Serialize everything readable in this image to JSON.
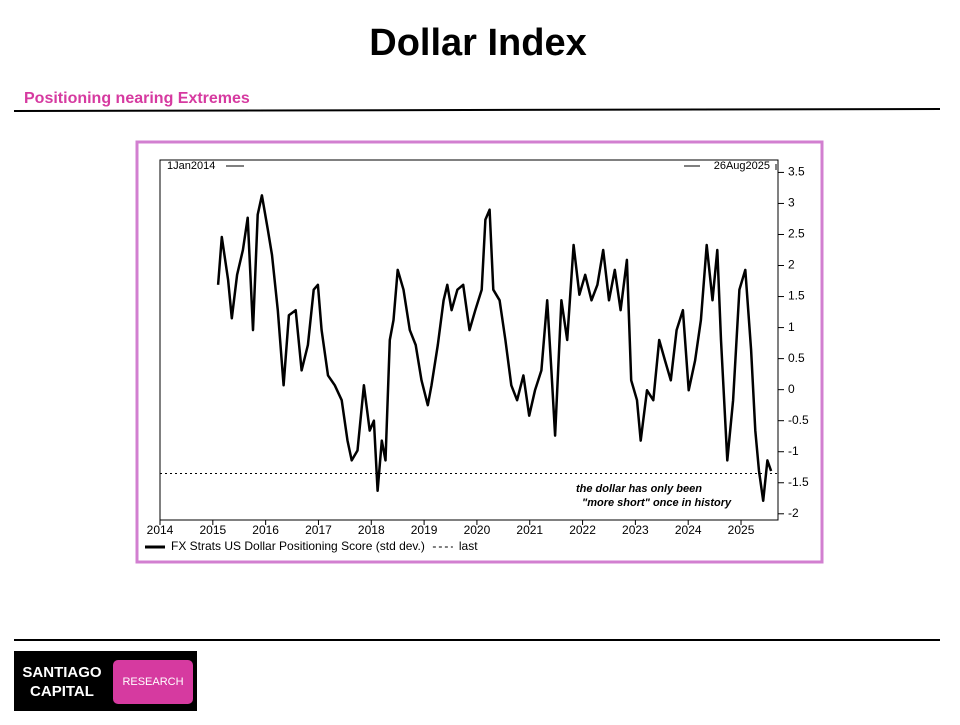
{
  "header": {
    "title": "Dollar Index",
    "subtitle": "Positioning nearing Extremes"
  },
  "logo": {
    "line1": "SANTIAGO",
    "line2": "CAPITAL",
    "tag": "RESEARCH"
  },
  "chart_data": {
    "type": "line",
    "start_label": "1Jan2014",
    "end_label": "26Aug2025",
    "annotation": [
      "the dollar has only been",
      "\"more short\" once in history"
    ],
    "x": [
      2015.1,
      2015.17,
      2015.29,
      2015.36,
      2015.46,
      2015.57,
      2015.66,
      2015.76,
      2015.85,
      2015.93,
      2016.04,
      2016.12,
      2016.23,
      2016.34,
      2016.44,
      2016.57,
      2016.68,
      2016.8,
      2016.91,
      2016.99,
      2017.06,
      2017.18,
      2017.31,
      2017.44,
      2017.55,
      2017.63,
      2017.74,
      2017.86,
      2017.97,
      2018.05,
      2018.12,
      2018.2,
      2018.27,
      2018.35,
      2018.42,
      2018.5,
      2018.61,
      2018.73,
      2018.84,
      2018.95,
      2019.07,
      2019.14,
      2019.26,
      2019.37,
      2019.44,
      2019.52,
      2019.63,
      2019.74,
      2019.86,
      2019.97,
      2020.09,
      2020.16,
      2020.24,
      2020.31,
      2020.43,
      2020.54,
      2020.65,
      2020.76,
      2020.88,
      2020.99,
      2021.1,
      2021.22,
      2021.33,
      2021.41,
      2021.48,
      2021.6,
      2021.71,
      2021.83,
      2021.94,
      2022.05,
      2022.17,
      2022.28,
      2022.39,
      2022.5,
      2022.61,
      2022.72,
      2022.84,
      2022.92,
      2023.03,
      2023.1,
      2023.22,
      2023.34,
      2023.45,
      2023.56,
      2023.67,
      2023.78,
      2023.9,
      2024.01,
      2024.13,
      2024.24,
      2024.35,
      2024.46,
      2024.55,
      2024.62,
      2024.74,
      2024.85,
      2024.97,
      2025.08,
      2025.19,
      2025.27,
      2025.34,
      2025.42,
      2025.5,
      2025.57
    ],
    "series": [
      {
        "name": "FX Strats US Dollar Positioning Score (std dev.)",
        "color": "#000000",
        "values": [
          1.69,
          2.46,
          1.77,
          1.15,
          1.85,
          2.25,
          2.77,
          0.96,
          2.82,
          3.13,
          2.58,
          2.17,
          1.28,
          0.07,
          1.2,
          1.28,
          0.31,
          0.72,
          1.61,
          1.69,
          0.96,
          0.23,
          0.07,
          -0.17,
          -0.82,
          -1.14,
          -0.98,
          0.07,
          -0.66,
          -0.5,
          -1.63,
          -0.82,
          -1.14,
          0.8,
          1.12,
          1.93,
          1.61,
          0.96,
          0.72,
          0.15,
          -0.25,
          0.07,
          0.72,
          1.44,
          1.69,
          1.28,
          1.61,
          1.69,
          0.96,
          1.28,
          1.61,
          2.74,
          2.9,
          1.61,
          1.44,
          0.8,
          0.07,
          -0.17,
          0.23,
          -0.42,
          -0.01,
          0.31,
          1.44,
          0.31,
          -0.74,
          1.44,
          0.8,
          2.33,
          1.53,
          1.85,
          1.44,
          1.69,
          2.25,
          1.44,
          1.93,
          1.28,
          2.09,
          0.15,
          -0.17,
          -0.82,
          -0.01,
          -0.17,
          0.8,
          0.47,
          0.15,
          0.96,
          1.28,
          -0.01,
          0.47,
          1.12,
          2.33,
          1.44,
          2.25,
          0.8,
          -1.14,
          -0.17,
          1.61,
          1.93,
          0.64,
          -0.66,
          -1.31,
          -1.79,
          -1.14,
          -1.31
        ]
      }
    ],
    "reference_line": {
      "label": "last",
      "value": -1.35,
      "color": "#000000"
    },
    "xlim": [
      2014,
      2025.7
    ],
    "xticks": [
      2014,
      2015,
      2016,
      2017,
      2018,
      2019,
      2020,
      2021,
      2022,
      2023,
      2024,
      2025
    ],
    "ylim": [
      -2.1,
      3.7
    ],
    "yticks": [
      3.5,
      3,
      2.5,
      2,
      1.5,
      1,
      0.5,
      0,
      -0.5,
      -1,
      -1.5,
      -2
    ],
    "y_axis_side": "right"
  }
}
